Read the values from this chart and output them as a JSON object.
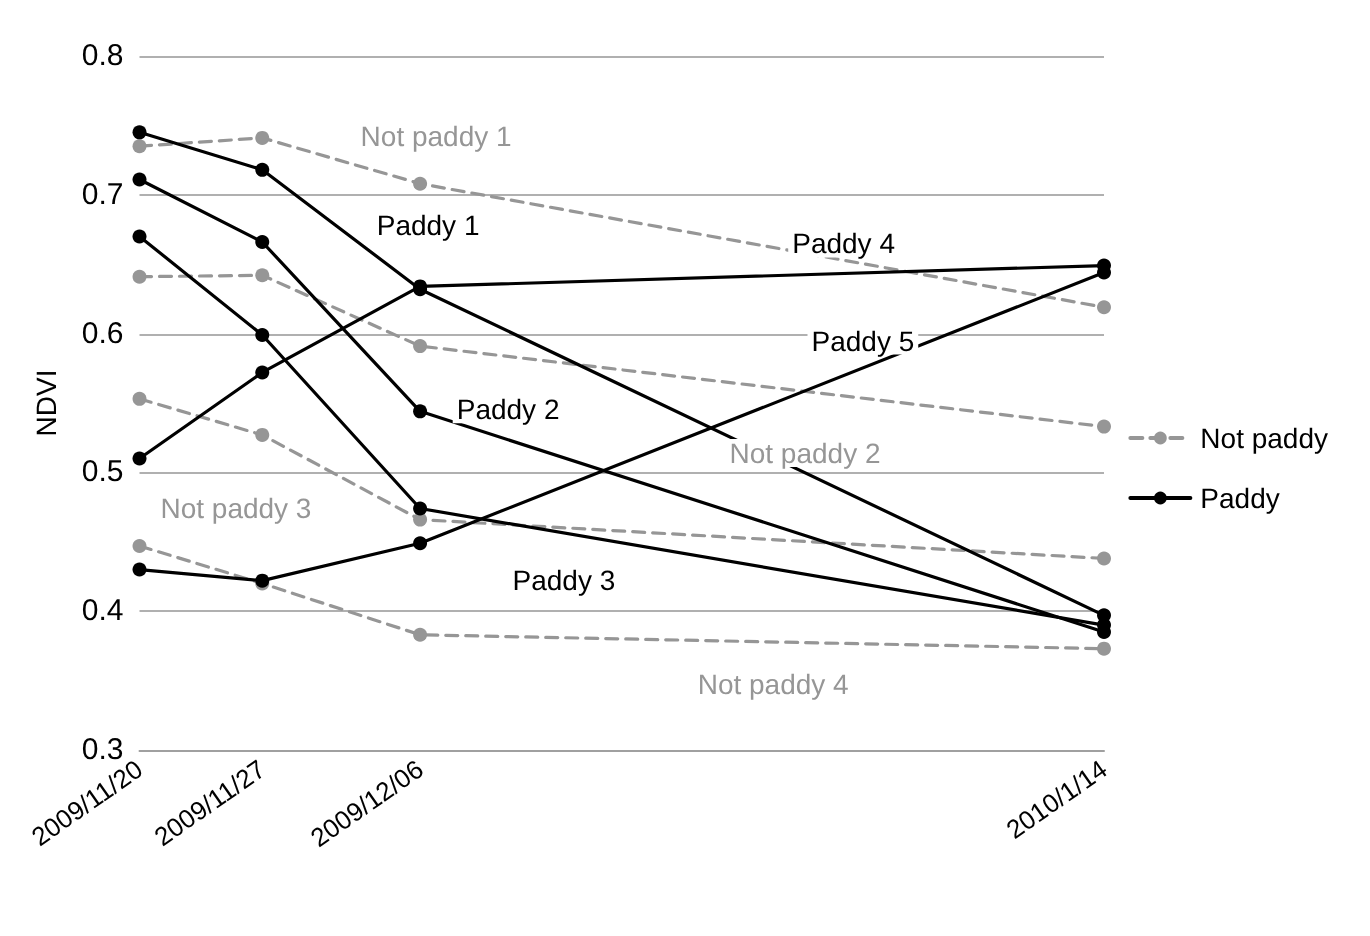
{
  "chart_data": {
    "type": "line",
    "ylabel": "NDVI",
    "x": [
      "2009-11-20",
      "2009-11-27",
      "2009-12-06",
      "2010-01-14"
    ],
    "xlim": [
      "2009-11-20",
      "2010-01-14"
    ],
    "xticks": [
      {
        "value": "2009-11-20",
        "label": "2009/11/20"
      },
      {
        "value": "2009-11-27",
        "label": "2009/11/27"
      },
      {
        "value": "2009-12-06",
        "label": "2009/12/06"
      },
      {
        "value": "2010-01-14",
        "label": "2010/1/14"
      }
    ],
    "ylim": [
      0.3,
      0.8
    ],
    "yticks": [
      0.3,
      0.4,
      0.5,
      0.6,
      0.7,
      0.8
    ],
    "grid": "y",
    "legend": "right",
    "marker": "circle",
    "series": [
      {
        "name": "Not paddy",
        "color": "#969696",
        "line_style": "dashed",
        "values": [
          0.735,
          0.741,
          0.708,
          0.619
        ]
      },
      {
        "color": "#969696",
        "line_style": "dashed",
        "values": [
          0.641,
          0.642,
          0.591,
          0.533
        ]
      },
      {
        "color": "#969696",
        "line_style": "dashed",
        "values": [
          0.553,
          0.527,
          0.466,
          0.438
        ]
      },
      {
        "color": "#969696",
        "line_style": "dashed",
        "values": [
          0.447,
          0.42,
          0.383,
          0.373
        ]
      },
      {
        "name": "Paddy",
        "color": "#000000",
        "line_style": "solid",
        "values": [
          0.745,
          0.718,
          0.632,
          0.397
        ]
      },
      {
        "color": "#000000",
        "line_style": "solid",
        "values": [
          0.711,
          0.666,
          0.544,
          0.385
        ]
      },
      {
        "color": "#000000",
        "line_style": "solid",
        "values": [
          0.67,
          0.599,
          0.474,
          0.39
        ]
      },
      {
        "color": "#000000",
        "line_style": "solid",
        "values": [
          0.51,
          0.572,
          0.634,
          0.649
        ]
      },
      {
        "color": "#000000",
        "line_style": "solid",
        "values": [
          0.43,
          0.422,
          0.449,
          0.644
        ]
      }
    ],
    "annotations": [
      {
        "text": "Not paddy 1",
        "x": "2009-12-06",
        "y": 0.708
      },
      {
        "text": "Paddy 1",
        "x": "2009-12-06",
        "y": 0.632
      },
      {
        "text": "Paddy 2",
        "x": "2009-12-06",
        "y": 0.544
      },
      "Paddy 3",
      "Paddy 4",
      "Paddy 5",
      "Not paddy 2",
      "Not paddy 3",
      "Not paddy 4"
    ]
  }
}
